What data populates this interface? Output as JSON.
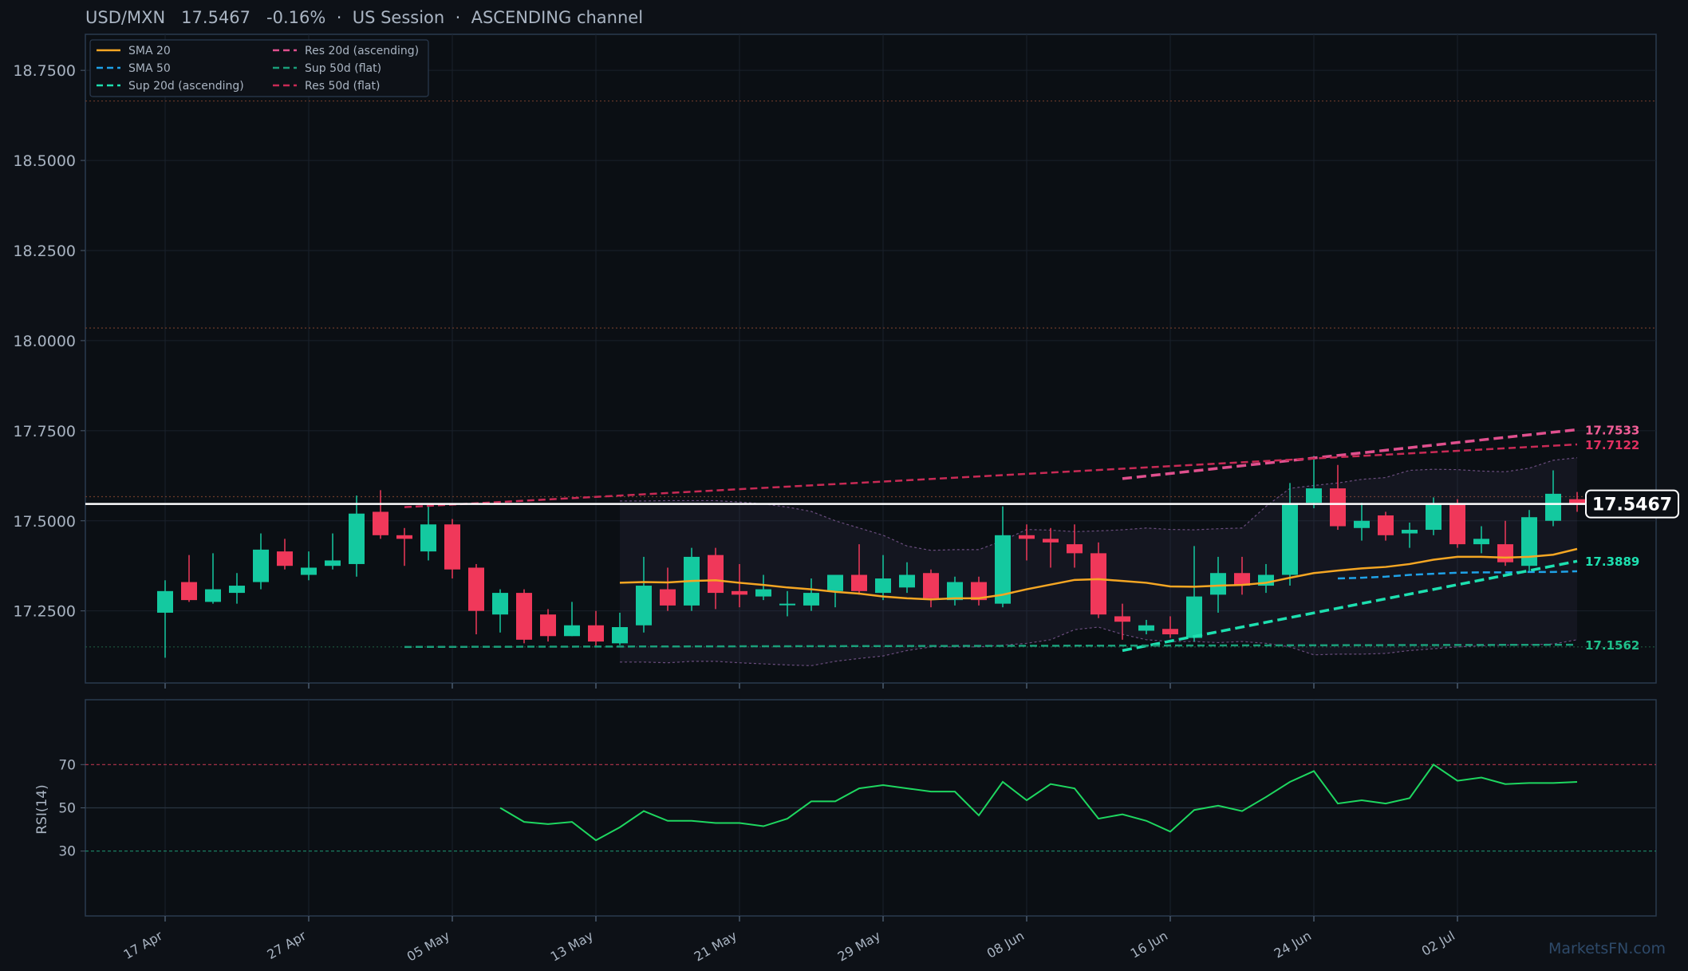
{
  "title": {
    "symbol": "USD/MXN",
    "price": "17.5467",
    "change": "-0.16%",
    "session": "US Session",
    "channel": "ASCENDING channel",
    "text": "USD/MXN   17.5467   -0.16%  ·  US Session  ·  ASCENDING channel"
  },
  "watermark": "MarketsFN.com",
  "colors": {
    "background": "#0d1117",
    "bull": "#14c9a0",
    "bear": "#f0385a",
    "sma20": "#f5a623",
    "sma50": "#1fa2e8",
    "sup20": "#1de0b0",
    "res20": "#e0508e",
    "sup50": "#1a9e7a",
    "res50": "#c82a55",
    "rsi": "#1ed760",
    "grid": "#1a212b",
    "axis_text": "#a9b4c2"
  },
  "chart_data": [
    {
      "type": "candlestick",
      "ylim": [
        17.05,
        18.85
      ],
      "yticks": [
        "17.2500",
        "17.5000",
        "17.7500",
        "18.0000",
        "18.2500",
        "18.5000",
        "18.7500"
      ],
      "x_tick_labels": [
        "17 Apr",
        "27 Apr",
        "05 May",
        "13 May",
        "21 May",
        "29 May",
        "08 Jun",
        "16 Jun",
        "24 Jun",
        "02 Jul"
      ],
      "x_tick_index": [
        0,
        6,
        12,
        18,
        24,
        30,
        36,
        42,
        48,
        54
      ],
      "candles": [
        [
          17.245,
          17.305,
          17.12,
          17.335
        ],
        [
          17.33,
          17.28,
          17.275,
          17.405
        ],
        [
          17.275,
          17.31,
          17.27,
          17.41
        ],
        [
          17.3,
          17.32,
          17.27,
          17.355
        ],
        [
          17.33,
          17.42,
          17.31,
          17.465
        ],
        [
          17.415,
          17.375,
          17.365,
          17.45
        ],
        [
          17.35,
          17.37,
          17.335,
          17.415
        ],
        [
          17.375,
          17.39,
          17.365,
          17.465
        ],
        [
          17.38,
          17.52,
          17.345,
          17.57
        ],
        [
          17.525,
          17.46,
          17.45,
          17.585
        ],
        [
          17.46,
          17.45,
          17.375,
          17.48
        ],
        [
          17.415,
          17.49,
          17.39,
          17.54
        ],
        [
          17.49,
          17.365,
          17.34,
          17.505
        ],
        [
          17.37,
          17.25,
          17.185,
          17.38
        ],
        [
          17.24,
          17.3,
          17.19,
          17.31
        ],
        [
          17.3,
          17.17,
          17.16,
          17.31
        ],
        [
          17.24,
          17.18,
          17.165,
          17.255
        ],
        [
          17.18,
          17.21,
          17.18,
          17.275
        ],
        [
          17.21,
          17.165,
          17.15,
          17.25
        ],
        [
          17.16,
          17.205,
          17.155,
          17.245
        ],
        [
          17.21,
          17.32,
          17.19,
          17.4
        ],
        [
          17.31,
          17.265,
          17.25,
          17.37
        ],
        [
          17.265,
          17.4,
          17.25,
          17.425
        ],
        [
          17.405,
          17.3,
          17.255,
          17.425
        ],
        [
          17.305,
          17.295,
          17.26,
          17.38
        ],
        [
          17.29,
          17.31,
          17.28,
          17.35
        ],
        [
          17.27,
          17.27,
          17.235,
          17.305
        ],
        [
          17.265,
          17.3,
          17.25,
          17.34
        ],
        [
          17.305,
          17.35,
          17.26,
          17.35
        ],
        [
          17.35,
          17.305,
          17.295,
          17.435
        ],
        [
          17.3,
          17.34,
          17.28,
          17.405
        ],
        [
          17.315,
          17.35,
          17.3,
          17.385
        ],
        [
          17.355,
          17.285,
          17.26,
          17.365
        ],
        [
          17.28,
          17.33,
          17.265,
          17.345
        ],
        [
          17.33,
          17.28,
          17.265,
          17.345
        ],
        [
          17.27,
          17.46,
          17.26,
          17.54
        ],
        [
          17.46,
          17.45,
          17.39,
          17.49
        ],
        [
          17.45,
          17.44,
          17.37,
          17.48
        ],
        [
          17.435,
          17.41,
          17.37,
          17.49
        ],
        [
          17.41,
          17.24,
          17.23,
          17.44
        ],
        [
          17.235,
          17.22,
          17.17,
          17.27
        ],
        [
          17.195,
          17.21,
          17.185,
          17.225
        ],
        [
          17.2,
          17.185,
          17.175,
          17.235
        ],
        [
          17.175,
          17.29,
          17.165,
          17.43
        ],
        [
          17.295,
          17.355,
          17.245,
          17.4
        ],
        [
          17.355,
          17.32,
          17.295,
          17.4
        ],
        [
          17.32,
          17.35,
          17.3,
          17.38
        ],
        [
          17.35,
          17.545,
          17.32,
          17.605
        ],
        [
          17.55,
          17.59,
          17.535,
          17.68
        ],
        [
          17.59,
          17.485,
          17.475,
          17.655
        ],
        [
          17.48,
          17.5,
          17.445,
          17.55
        ],
        [
          17.515,
          17.46,
          17.445,
          17.525
        ],
        [
          17.465,
          17.475,
          17.425,
          17.495
        ],
        [
          17.475,
          17.545,
          17.46,
          17.565
        ],
        [
          17.545,
          17.435,
          17.425,
          17.56
        ],
        [
          17.435,
          17.45,
          17.41,
          17.485
        ],
        [
          17.435,
          17.385,
          17.375,
          17.5
        ],
        [
          17.375,
          17.51,
          17.36,
          17.53
        ],
        [
          17.5,
          17.575,
          17.485,
          17.64
        ],
        [
          17.56,
          17.545,
          17.525,
          17.58
        ]
      ],
      "series": [
        {
          "name": "SMA 20",
          "start": 19,
          "values": [
            17.328,
            17.33,
            17.329,
            17.333,
            17.335,
            17.328,
            17.322,
            17.315,
            17.31,
            17.303,
            17.298,
            17.29,
            17.285,
            17.282,
            17.285,
            17.285,
            17.295,
            17.31,
            17.323,
            17.336,
            17.338,
            17.333,
            17.328,
            17.318,
            17.317,
            17.32,
            17.322,
            17.328,
            17.342,
            17.355,
            17.362,
            17.368,
            17.372,
            17.38,
            17.392,
            17.4,
            17.4,
            17.398,
            17.4,
            17.406,
            17.422
          ]
        },
        {
          "name": "SMA 50",
          "start": 49,
          "values": [
            17.34,
            17.342,
            17.345,
            17.35,
            17.353,
            17.356,
            17.357,
            17.357,
            17.358,
            17.358,
            17.36
          ]
        },
        {
          "name": "Sup 20d (ascending)",
          "start": 40,
          "values": [
            17.14,
            17.388
          ]
        },
        {
          "name": "Res 20d (ascending)",
          "start": 40,
          "values": [
            17.617,
            17.753
          ]
        },
        {
          "name": "Sup 50d (flat)",
          "start": 10,
          "values": [
            17.15,
            17.156
          ]
        },
        {
          "name": "Res 50d (flat)",
          "start": 10,
          "values": [
            17.538,
            17.712
          ]
        }
      ],
      "bollinger": {
        "start": 19,
        "upper": [
          17.555,
          17.555,
          17.556,
          17.556,
          17.556,
          17.552,
          17.547,
          17.538,
          17.526,
          17.5,
          17.48,
          17.46,
          17.43,
          17.418,
          17.42,
          17.42,
          17.445,
          17.476,
          17.474,
          17.47,
          17.472,
          17.475,
          17.48,
          17.476,
          17.475,
          17.478,
          17.48,
          17.54,
          17.59,
          17.598,
          17.605,
          17.615,
          17.62,
          17.64,
          17.643,
          17.642,
          17.638,
          17.636,
          17.646,
          17.668,
          17.675
        ],
        "lower": [
          17.108,
          17.108,
          17.106,
          17.11,
          17.11,
          17.106,
          17.103,
          17.1,
          17.098,
          17.11,
          17.118,
          17.125,
          17.14,
          17.15,
          17.15,
          17.15,
          17.155,
          17.16,
          17.17,
          17.198,
          17.205,
          17.185,
          17.17,
          17.165,
          17.165,
          17.162,
          17.165,
          17.16,
          17.15,
          17.128,
          17.13,
          17.13,
          17.132,
          17.14,
          17.145,
          17.15,
          17.153,
          17.155,
          17.156,
          17.158,
          17.17
        ]
      },
      "current_price_label": "17.5467",
      "right_labels": [
        {
          "text": "17.7533",
          "value": 17.7533,
          "color": "#f25e97"
        },
        {
          "text": "17.7122",
          "value": 17.7122,
          "color": "#e03060"
        },
        {
          "text": "17.3889",
          "value": 17.3889,
          "color": "#1de0b0"
        },
        {
          "text": "17.1562",
          "value": 17.1562,
          "color": "#1fbf8a"
        }
      ],
      "reference_lines": [
        {
          "value": 18.665,
          "color": "#6b3a2a"
        },
        {
          "value": 18.035,
          "color": "#6b3a2a"
        },
        {
          "value": 17.567,
          "color": "#6b3a2a"
        },
        {
          "value": 17.15,
          "color": "#1c5a40"
        }
      ],
      "legend_position": "top-left",
      "legend": [
        {
          "label": "SMA 20",
          "color": "#f5a623",
          "dash": "solid"
        },
        {
          "label": "SMA 50",
          "color": "#1fa2e8",
          "dash": "dashed"
        },
        {
          "label": "Sup 20d (ascending)",
          "color": "#1de0b0",
          "dash": "dashed"
        },
        {
          "label": "Res 20d (ascending)",
          "color": "#e0508e",
          "dash": "dashed"
        },
        {
          "label": "Sup 50d (flat)",
          "color": "#1a9e7a",
          "dash": "dashed"
        },
        {
          "label": "Res 50d (flat)",
          "color": "#c82a55",
          "dash": "dashed"
        }
      ]
    },
    {
      "type": "line",
      "ylabel": "RSI(14)",
      "ylim": [
        0,
        100
      ],
      "yticks": [
        "30",
        "50",
        "70"
      ],
      "reference_levels": [
        70,
        50,
        30
      ],
      "series": [
        {
          "start": 14,
          "values": [
            50,
            43.5,
            42.5,
            43.5,
            35,
            41,
            48.5,
            44,
            44,
            43,
            43,
            41.5,
            45,
            53,
            53,
            59,
            60.5,
            59,
            57.5,
            57.5,
            46.5,
            62,
            53.5,
            61,
            59,
            45,
            47,
            44,
            39,
            49,
            51,
            48.5,
            55,
            62,
            67,
            52,
            53.5,
            52,
            54.5,
            70,
            62.5,
            64,
            61,
            61.5,
            61.5,
            62
          ]
        }
      ]
    }
  ]
}
